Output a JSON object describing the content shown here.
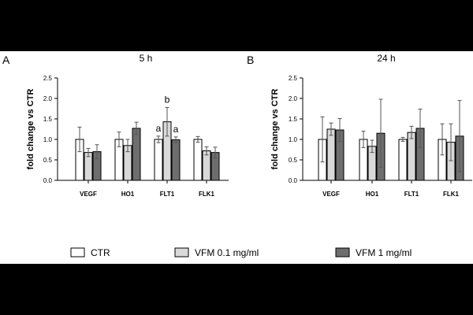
{
  "colors": {
    "CTR": "#ffffff",
    "VFM 0.1 mg/ml": "#d9d9d9",
    "VFM 1 mg/ml": "#6e6e6e",
    "stroke": "#000000",
    "frame": "#000000"
  },
  "chart_data": [
    {
      "panel": "A",
      "type": "bar",
      "title": "5 h",
      "xlabel": "",
      "ylabel": "fold change vs CTR",
      "ylim": [
        0,
        2.5
      ],
      "yticks": [
        "0.0",
        "0.5",
        "1.0",
        "1.5",
        "2.0",
        "2.5"
      ],
      "categories": [
        "VEGF",
        "HO1",
        "FLT1",
        "FLK1"
      ],
      "series": [
        {
          "name": "CTR",
          "values": [
            1.0,
            1.0,
            1.0,
            1.0
          ],
          "errors": [
            0.3,
            0.18,
            0.08,
            0.07
          ]
        },
        {
          "name": "VFM 0.1 mg/ml",
          "values": [
            0.68,
            0.85,
            1.43,
            0.72
          ],
          "errors": [
            0.1,
            0.15,
            0.35,
            0.1
          ]
        },
        {
          "name": "VFM 1 mg/ml",
          "values": [
            0.7,
            1.27,
            0.99,
            0.68
          ],
          "errors": [
            0.17,
            0.15,
            0.07,
            0.13
          ]
        }
      ],
      "annotations": [
        {
          "category": "FLT1",
          "series": "CTR",
          "text": "a"
        },
        {
          "category": "FLT1",
          "series": "VFM 0.1 mg/ml",
          "text": "b"
        },
        {
          "category": "FLT1",
          "series": "VFM 1 mg/ml",
          "text": "a"
        }
      ]
    },
    {
      "panel": "B",
      "type": "bar",
      "title": "24 h",
      "xlabel": "",
      "ylabel": "fold change vs CTR",
      "ylim": [
        0,
        2.5
      ],
      "yticks": [
        "0.0",
        "0.5",
        "1.0",
        "1.5",
        "2.0",
        "2.5"
      ],
      "categories": [
        "VEGF",
        "HO1",
        "FLT1",
        "FLK1"
      ],
      "series": [
        {
          "name": "CTR",
          "values": [
            1.0,
            1.0,
            1.0,
            1.0
          ],
          "errors": [
            0.55,
            0.2,
            0.05,
            0.38
          ]
        },
        {
          "name": "VFM 0.1 mg/ml",
          "values": [
            1.25,
            0.83,
            1.17,
            0.93
          ],
          "errors": [
            0.15,
            0.15,
            0.15,
            0.45
          ]
        },
        {
          "name": "VFM 1 mg/ml",
          "values": [
            1.23,
            1.15,
            1.27,
            1.08
          ],
          "errors": [
            0.28,
            0.83,
            0.47,
            0.87
          ]
        }
      ],
      "annotations": []
    }
  ],
  "legend": {
    "placement": "bottom",
    "items": [
      {
        "label": "CTR",
        "color": "#ffffff"
      },
      {
        "label": "VFM 0.1 mg/ml",
        "color": "#d9d9d9"
      },
      {
        "label": "VFM 1 mg/ml",
        "color": "#6e6e6e"
      }
    ]
  }
}
